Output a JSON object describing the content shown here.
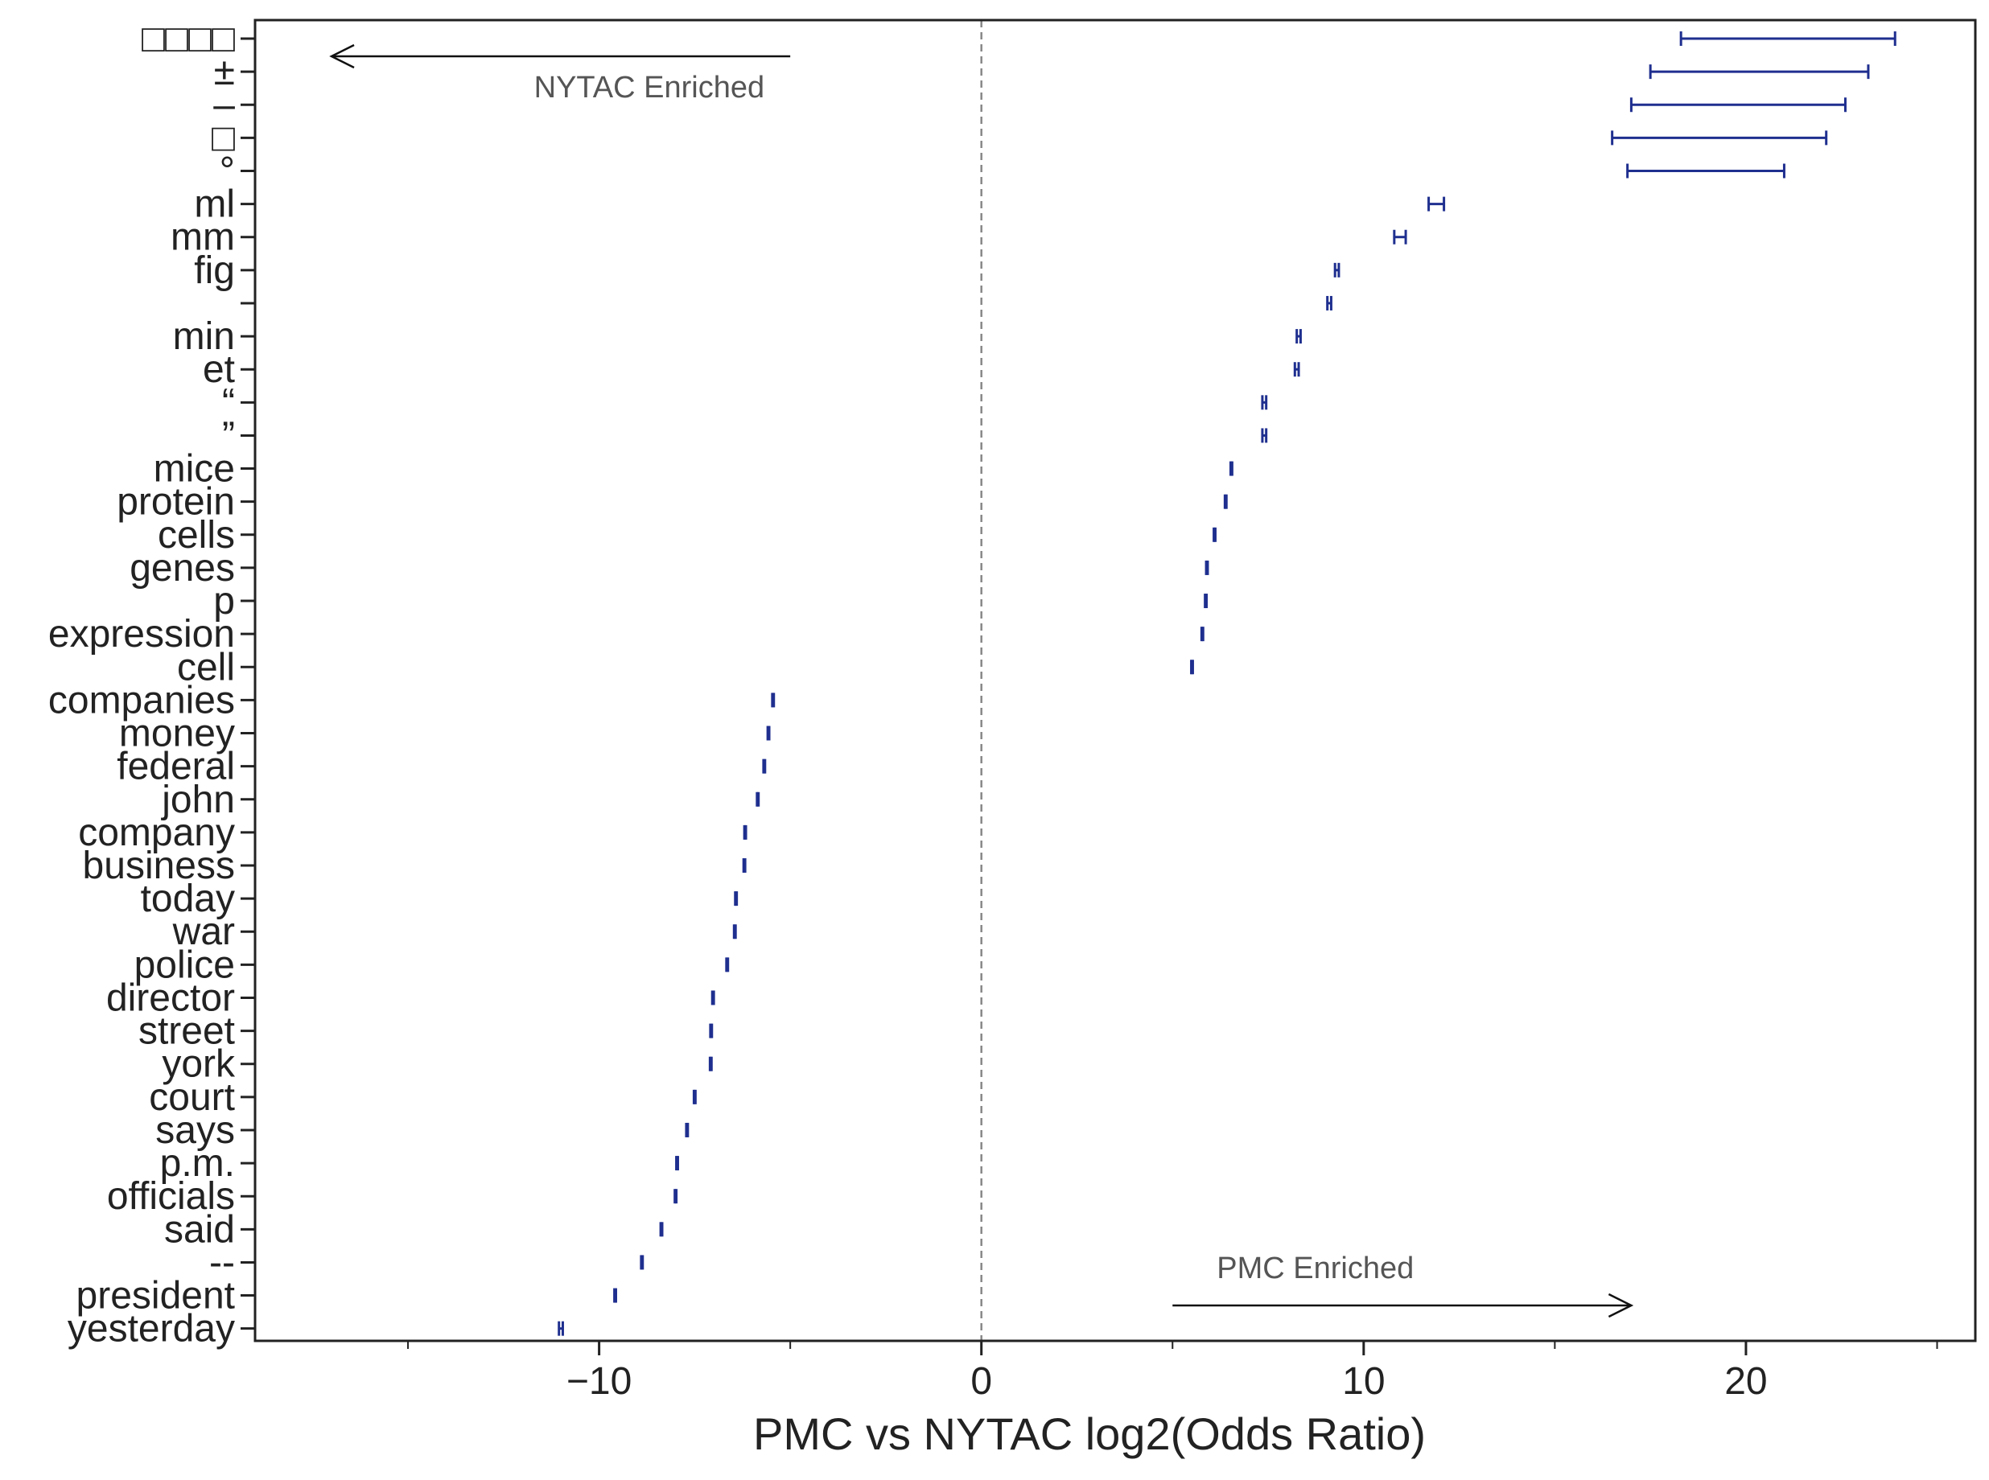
{
  "chart_data": {
    "type": "errorbar",
    "xlabel": "PMC vs NYTAC log2(Odds Ratio)",
    "ylabel": "",
    "xlim": [
      -19,
      26
    ],
    "xticks": [
      -10,
      0,
      10,
      20
    ],
    "xtick_labels": [
      "−10",
      "0",
      "10",
      "20"
    ],
    "minor_xticks": [
      -15,
      -5,
      5,
      15,
      25
    ],
    "reference_line": {
      "x": 0,
      "style": "dashed"
    },
    "annotations": [
      {
        "text": "NYTAC Enriched",
        "arrow_from": -5,
        "arrow_to": -17
      },
      {
        "text": "PMC Enriched",
        "arrow_from": 5,
        "arrow_to": 17
      }
    ],
    "series_color": "#1f2f8f",
    "rows": [
      {
        "label": "□□□□",
        "low": 18.3,
        "high": 23.9
      },
      {
        "label": "±",
        "low": 17.5,
        "high": 23.2
      },
      {
        "label": "–",
        "low": 17.0,
        "high": 22.6
      },
      {
        "label": "□",
        "low": 16.5,
        "high": 22.1
      },
      {
        "label": "°",
        "low": 16.9,
        "high": 21.0
      },
      {
        "label": "ml",
        "low": 11.7,
        "high": 12.1
      },
      {
        "label": "mm",
        "low": 10.8,
        "high": 11.1
      },
      {
        "label": "fig",
        "low": 9.25,
        "high": 9.35
      },
      {
        "label": " ",
        "low": 9.05,
        "high": 9.15
      },
      {
        "label": "min",
        "low": 8.25,
        "high": 8.35
      },
      {
        "label": "et",
        "low": 8.2,
        "high": 8.3
      },
      {
        "label": "“",
        "low": 7.35,
        "high": 7.45
      },
      {
        "label": "”",
        "low": 7.35,
        "high": 7.45
      },
      {
        "label": "mice",
        "low": 6.52,
        "high": 6.56
      },
      {
        "label": "protein",
        "low": 6.37,
        "high": 6.41
      },
      {
        "label": "cells",
        "low": 6.08,
        "high": 6.12
      },
      {
        "label": "genes",
        "low": 5.88,
        "high": 5.92
      },
      {
        "label": "p",
        "low": 5.85,
        "high": 5.89
      },
      {
        "label": "expression",
        "low": 5.76,
        "high": 5.8
      },
      {
        "label": "cell",
        "low": 5.49,
        "high": 5.53
      },
      {
        "label": "companies",
        "low": -5.47,
        "high": -5.43
      },
      {
        "label": "money",
        "low": -5.59,
        "high": -5.55
      },
      {
        "label": "federal",
        "low": -5.7,
        "high": -5.66
      },
      {
        "label": "john",
        "low": -5.87,
        "high": -5.83
      },
      {
        "label": "company",
        "low": -6.2,
        "high": -6.16
      },
      {
        "label": "business",
        "low": -6.22,
        "high": -6.18
      },
      {
        "label": "today",
        "low": -6.44,
        "high": -6.4
      },
      {
        "label": "war",
        "low": -6.47,
        "high": -6.43
      },
      {
        "label": "police",
        "low": -6.67,
        "high": -6.63
      },
      {
        "label": "director",
        "low": -7.04,
        "high": -7.0
      },
      {
        "label": "street",
        "low": -7.09,
        "high": -7.05
      },
      {
        "label": "york",
        "low": -7.1,
        "high": -7.06
      },
      {
        "label": "court",
        "low": -7.52,
        "high": -7.48
      },
      {
        "label": "says",
        "low": -7.72,
        "high": -7.68
      },
      {
        "label": "p.m.",
        "low": -7.98,
        "high": -7.94
      },
      {
        "label": "officials",
        "low": -8.02,
        "high": -7.98
      },
      {
        "label": "said",
        "low": -8.39,
        "high": -8.35
      },
      {
        "label": "--",
        "low": -8.9,
        "high": -8.86
      },
      {
        "label": "president",
        "low": -9.6,
        "high": -9.56
      },
      {
        "label": "yesterday",
        "low": -11.05,
        "high": -10.95
      }
    ]
  }
}
